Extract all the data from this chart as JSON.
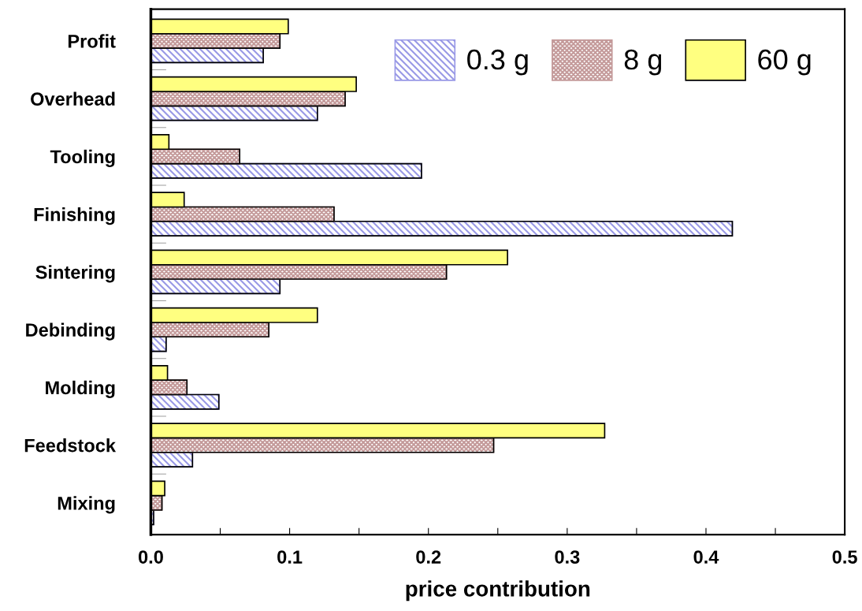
{
  "chart_data": {
    "type": "bar",
    "orientation": "horizontal",
    "xlabel": "price contribution",
    "categories": [
      "Profit",
      "Overhead",
      "Tooling",
      "Finishing",
      "Sintering",
      "Debinding",
      "Molding",
      "Feedstock",
      "Mixing"
    ],
    "series": [
      {
        "name": "0.3 g",
        "color": "#9999e6",
        "values": [
          0.081,
          0.12,
          0.195,
          0.419,
          0.093,
          0.011,
          0.049,
          0.03,
          0.002
        ]
      },
      {
        "name": "8 g",
        "color": "#c49a9a",
        "values": [
          0.093,
          0.14,
          0.064,
          0.132,
          0.213,
          0.085,
          0.026,
          0.247,
          0.008
        ]
      },
      {
        "name": "60 g",
        "color": "#ffff80",
        "values": [
          0.099,
          0.148,
          0.013,
          0.024,
          0.257,
          0.12,
          0.012,
          0.327,
          0.01
        ]
      }
    ],
    "xlim": [
      0,
      0.5
    ],
    "xticks": [
      {
        "value": 0,
        "label": "0.0"
      },
      {
        "value": 0.05,
        "label": null
      },
      0.1,
      {
        "value": 0.15,
        "label": null
      },
      0.2,
      {
        "value": 0.25,
        "label": null
      },
      0.3,
      {
        "value": 0.35,
        "label": null
      },
      0.4,
      {
        "value": 0.45,
        "label": null
      },
      0.5
    ],
    "grid": false,
    "legend": "top right"
  }
}
